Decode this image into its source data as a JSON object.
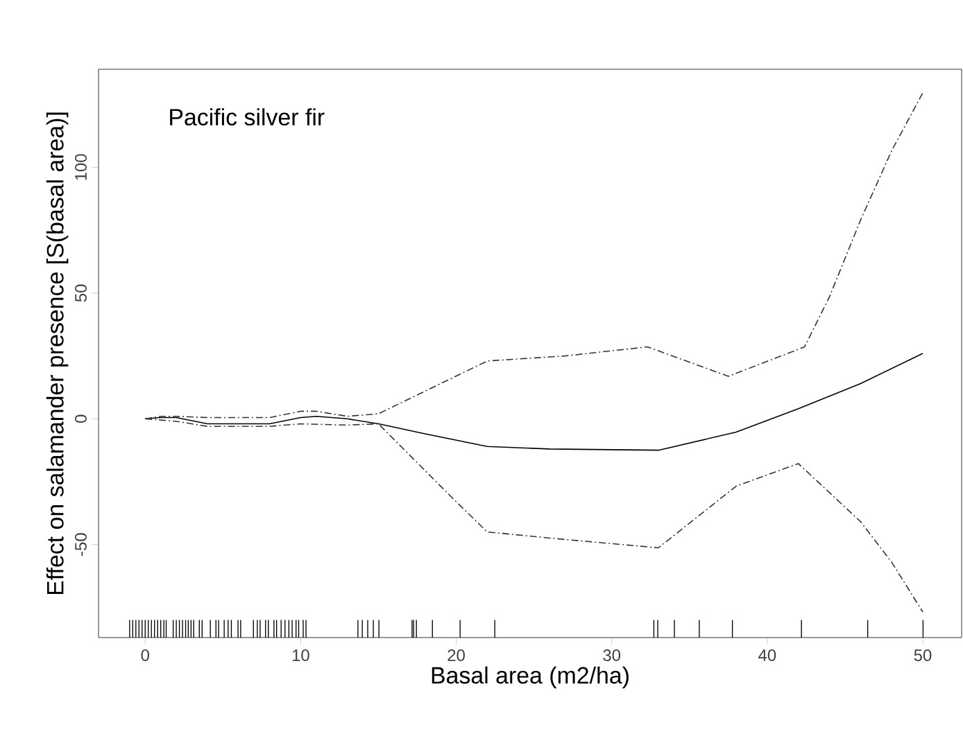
{
  "chart_data": {
    "type": "line",
    "xlabel": "Basal area (m2/ha)",
    "ylabel": "Effect on salamander presence [S(basal area)]",
    "annotations": [
      "Pacific silver fir"
    ],
    "xlim": [
      -3,
      52.5
    ],
    "ylim": [
      -87,
      139
    ],
    "xticks": [
      0,
      10,
      20,
      30,
      40,
      50
    ],
    "yticks": [
      -50,
      0,
      50,
      100
    ],
    "grid": false,
    "series": [
      {
        "color": "#000000",
        "line_style": "solid",
        "x": [
          0,
          1,
          2,
          4,
          8,
          10,
          11,
          13,
          15,
          18,
          22,
          26,
          33,
          38,
          42,
          46,
          50
        ],
        "values": [
          0,
          0.5,
          0.5,
          -2,
          -2,
          0.5,
          1,
          0,
          -2,
          -6,
          -11,
          -12,
          -12.5,
          -5.3,
          4,
          14,
          26
        ]
      },
      {
        "color": "#333333",
        "line_style": "dashed",
        "x": [
          0,
          1,
          2,
          4,
          8,
          10,
          11,
          13,
          15,
          18,
          22,
          27,
          32.3,
          37.5,
          42.4,
          44,
          46,
          48,
          50
        ],
        "values": [
          0,
          1,
          1,
          0.5,
          0.5,
          3,
          3,
          1,
          2,
          11,
          23,
          25,
          28.6,
          16.9,
          28.6,
          48.5,
          79,
          106.6,
          129.6
        ]
      },
      {
        "color": "#333333",
        "line_style": "dashed",
        "x": [
          0,
          1,
          2,
          4,
          8,
          10,
          13,
          15,
          20,
          22,
          27,
          33,
          38,
          42,
          46,
          48,
          50
        ],
        "values": [
          0,
          -0.5,
          -1,
          -3,
          -3,
          -2,
          -2.5,
          -2,
          -33,
          -45,
          -48,
          -51.3,
          -26.8,
          -17.8,
          -40.9,
          -57,
          -76.8
        ]
      },
      {
        "type": "bar",
        "color": "#000000",
        "base": [
          -87,
          -87,
          -87,
          -87,
          -87,
          -87,
          -87,
          -87,
          -87,
          -87,
          -87,
          -87,
          -87,
          -87,
          -87,
          -87,
          -87,
          -87,
          -87,
          -87,
          -87,
          -87,
          -87,
          -87,
          -87,
          -87,
          -87,
          -87,
          -87,
          -87,
          -87,
          -87,
          -87,
          -87,
          -87,
          -87,
          -87,
          -87,
          -87,
          -87,
          -87,
          -87,
          -87,
          -87,
          -87,
          -87,
          -87,
          -87,
          -87,
          -87,
          -87,
          -87,
          -87,
          -87,
          -87,
          -87,
          -87,
          -87,
          -87,
          -87,
          -87,
          -87,
          -87,
          -87,
          -87
        ],
        "x": [
          -1,
          -0.8,
          -0.6,
          -0.4,
          -0.2,
          0,
          0.2,
          0.4,
          0.6,
          0.8,
          1,
          1.2,
          1.35,
          1.8,
          2,
          2.2,
          2.4,
          2.6,
          2.77,
          2.95,
          3.12,
          3.48,
          3.66,
          4.19,
          4.55,
          4.72,
          5.08,
          5.33,
          5.54,
          5.97,
          6.14,
          6.96,
          7.21,
          7.39,
          7.74,
          7.92,
          8.28,
          8.45,
          8.74,
          8.99,
          9.24,
          9.45,
          9.7,
          9.87,
          10.16,
          10.34,
          13.68,
          13.96,
          14.31,
          14.67,
          15.03,
          17.16,
          17.26,
          17.44,
          18.47,
          20.25,
          22.48,
          32.71,
          32.96,
          34.03,
          35.63,
          37.76,
          42.2,
          46.46,
          50.02
        ],
        "values": [
          7,
          7,
          7,
          7,
          7,
          7,
          7,
          7,
          7,
          7,
          7,
          7,
          7,
          7,
          7,
          7,
          7,
          7,
          7,
          7,
          7,
          7,
          7,
          7,
          7,
          7,
          7,
          7,
          7,
          7,
          7,
          7,
          7,
          7,
          7,
          7,
          7,
          7,
          7,
          7,
          7,
          7,
          7,
          7,
          7,
          7,
          7,
          7,
          7,
          7,
          7,
          7,
          7,
          7,
          7,
          7,
          7,
          7,
          7,
          7,
          7,
          7,
          7,
          7,
          7
        ]
      }
    ]
  }
}
